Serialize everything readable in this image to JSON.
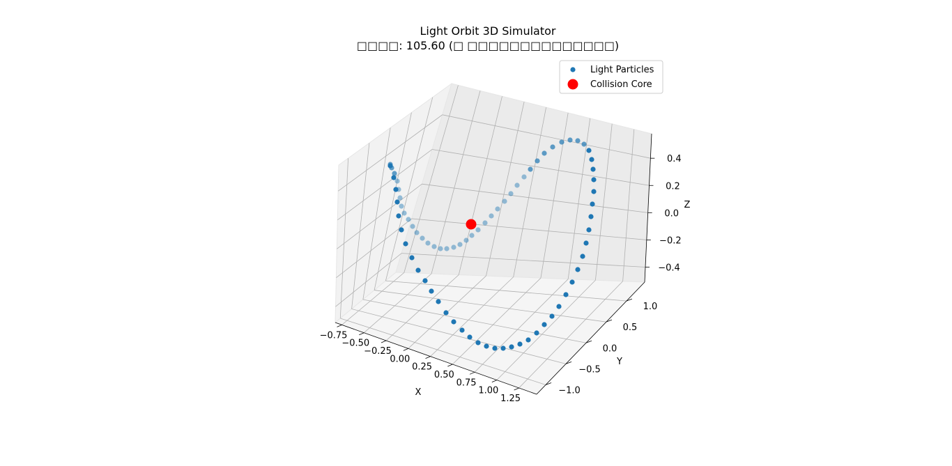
{
  "chart_data": {
    "type": "scatter",
    "title": "Light Orbit 3D Simulator",
    "subtitle": "□□□□: 105.60 (□ □□□□□□□□□□□□□□)",
    "xlabel": "X",
    "ylabel": "Y",
    "zlabel": "Z",
    "xlim": [
      -0.8,
      1.3
    ],
    "ylim": [
      -1.05,
      1.05
    ],
    "zlim": [
      -0.55,
      0.55
    ],
    "xticks": [
      "−0.75",
      "−0.50",
      "−0.25",
      "0.00",
      "0.25",
      "0.50",
      "0.75",
      "1.00",
      "1.25"
    ],
    "yticks": [
      "−1.0",
      "−0.5",
      "0.0",
      "0.5",
      "1.0"
    ],
    "zticks": [
      "−0.4",
      "−0.2",
      "0.0",
      "0.2",
      "0.4"
    ],
    "grid": true,
    "legend_position": "top-right",
    "series": [
      {
        "name": "Light Particles",
        "color": "#1f77b4",
        "marker": "circle",
        "description_units": "x, y, z estimated from the rendered 3D axes",
        "points_count_estimate": 100
      },
      {
        "name": "Collision Core",
        "color": "#ff0000",
        "marker": "circle-large",
        "points": [
          [
            0.0,
            0.0,
            0.0
          ]
        ]
      }
    ],
    "legend": [
      {
        "label": "Light Particles",
        "color": "#1f77b4"
      },
      {
        "label": "Collision Core",
        "color": "#ff0000"
      }
    ]
  }
}
